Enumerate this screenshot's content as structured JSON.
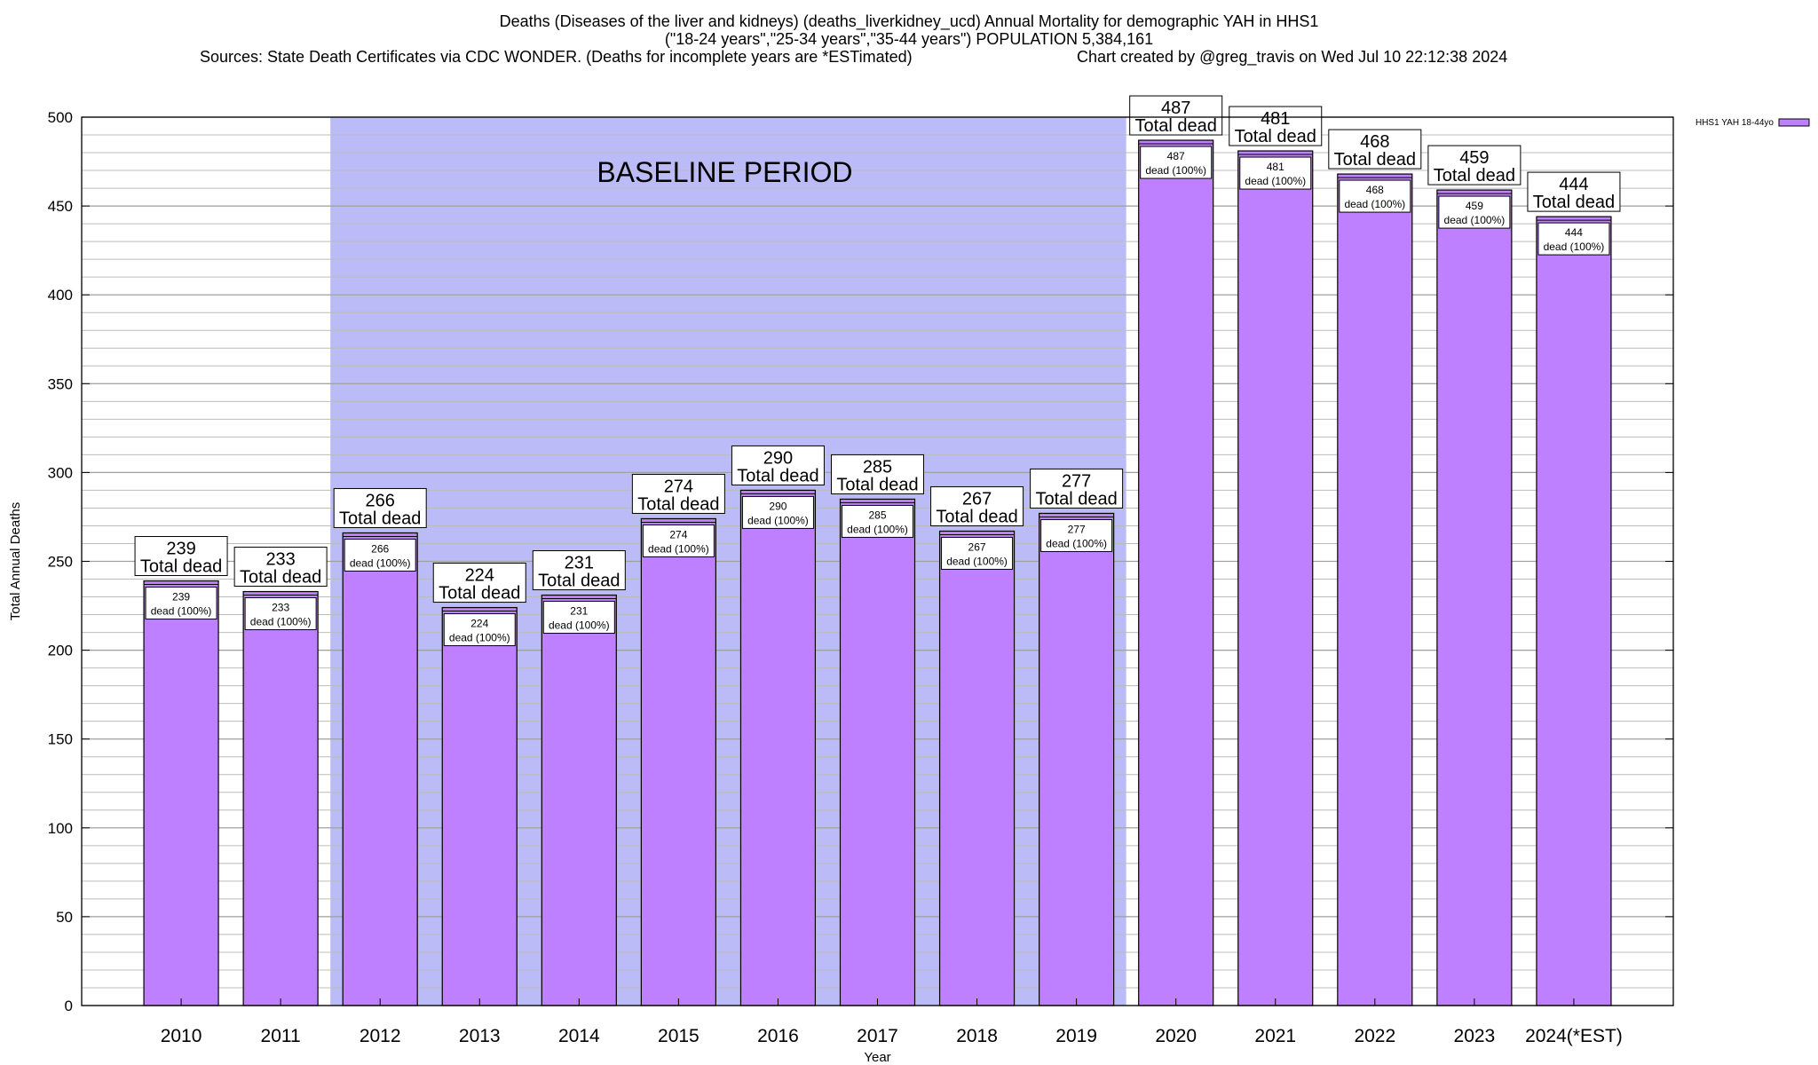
{
  "header": {
    "title_line1": "Deaths (Diseases of the liver and kidneys) (deaths_liverkidney_ucd) Annual Mortality for demographic YAH in HHS1",
    "title_line2": "(\"18-24 years\",\"25-34 years\",\"35-44 years\") POPULATION 5,384,161",
    "sources": "Sources: State Death Certificates via CDC WONDER. (Deaths for incomplete years are *ESTimated)",
    "credit": "Chart created by @greg_travis on Wed Jul 10 22:12:38 2024"
  },
  "chart_data": {
    "type": "bar",
    "xlabel": "Year",
    "ylabel": "Total Annual Deaths",
    "ylim": [
      0,
      500
    ],
    "y_ticks": [
      0,
      50,
      100,
      150,
      200,
      250,
      300,
      350,
      400,
      450,
      500
    ],
    "y_minor_step": 10,
    "grid": true,
    "legend_position": "top-right",
    "categories": [
      "2010",
      "2011",
      "2012",
      "2013",
      "2014",
      "2015",
      "2016",
      "2017",
      "2018",
      "2019",
      "2020",
      "2021",
      "2022",
      "2023",
      "2024(*EST)"
    ],
    "series": [
      {
        "name": "HHS1 YAH 18-44yo",
        "color": "#bf80ff",
        "values": [
          239,
          233,
          266,
          224,
          231,
          274,
          290,
          285,
          267,
          277,
          487,
          481,
          468,
          459,
          444
        ]
      }
    ],
    "annotation_top_suffix": "Total dead",
    "annotation_inner_suffix": "dead (100%)",
    "baseline": {
      "label": "BASELINE PERIOD",
      "start": "2012",
      "end": "2019",
      "color": "#bbbbf8"
    }
  }
}
